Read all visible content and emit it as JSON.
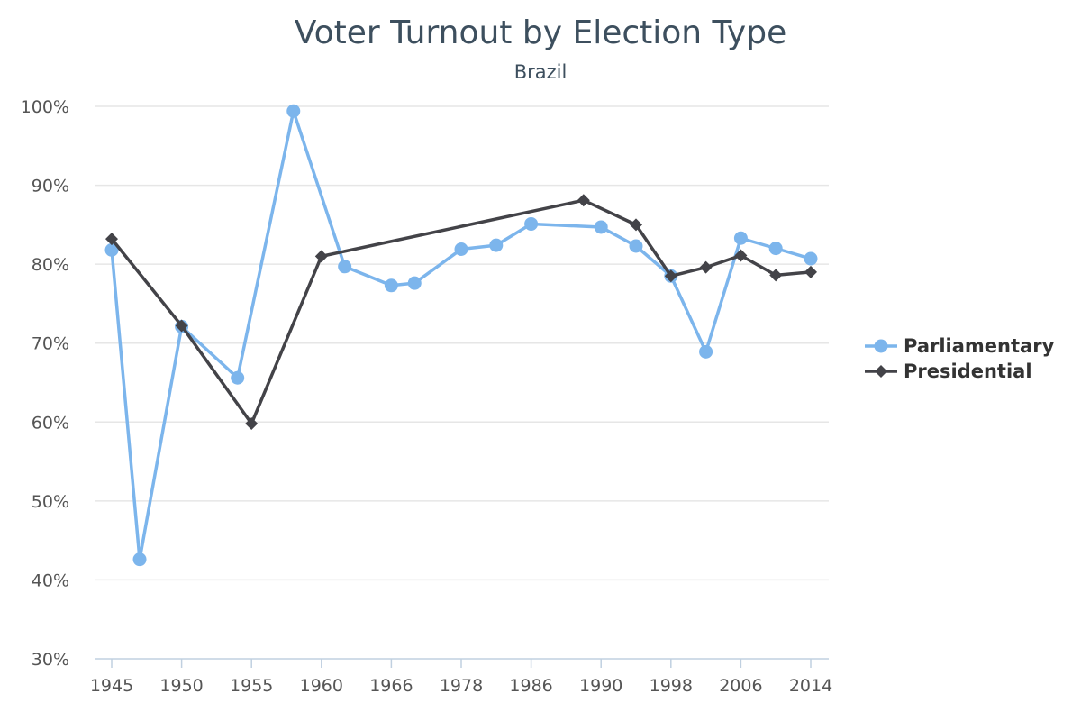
{
  "chart_data": {
    "type": "line",
    "title": "Voter Turnout by Election Type",
    "subtitle": "Brazil",
    "xlabel": "",
    "ylabel": "",
    "ylim": [
      30,
      100
    ],
    "y_ticks": [
      "100%",
      "90%",
      "80%",
      "70%",
      "60%",
      "50%",
      "40%",
      "30%"
    ],
    "x_ticks": [
      {
        "year": 1945,
        "label": "1945"
      },
      {
        "year": 1950,
        "label": "1950"
      },
      {
        "year": 1955,
        "label": "1955"
      },
      {
        "year": 1960,
        "label": "1960"
      },
      {
        "year": 1966,
        "label": "1966"
      },
      {
        "year": 1978,
        "label": "1978"
      },
      {
        "year": 1986,
        "label": "1986"
      },
      {
        "year": 1990,
        "label": "1990"
      },
      {
        "year": 1998,
        "label": "1998"
      },
      {
        "year": 2006,
        "label": "2006"
      },
      {
        "year": 2014,
        "label": "2014"
      }
    ],
    "grid": true,
    "legend_position": "right",
    "series": [
      {
        "name": "Parliamentary",
        "color": "#7cb5ec",
        "marker": "circle",
        "points": [
          {
            "x": 1945,
            "y": 81.8
          },
          {
            "x": 1947,
            "y": 42.6
          },
          {
            "x": 1950,
            "y": 72.1
          },
          {
            "x": 1954,
            "y": 65.6
          },
          {
            "x": 1958,
            "y": 99.4
          },
          {
            "x": 1962,
            "y": 79.7
          },
          {
            "x": 1966,
            "y": 77.3
          },
          {
            "x": 1970,
            "y": 77.6
          },
          {
            "x": 1978,
            "y": 81.9
          },
          {
            "x": 1982,
            "y": 82.4
          },
          {
            "x": 1986,
            "y": 85.1
          },
          {
            "x": 1990,
            "y": 84.7
          },
          {
            "x": 1994,
            "y": 82.3
          },
          {
            "x": 1998,
            "y": 78.5
          },
          {
            "x": 2002,
            "y": 68.9
          },
          {
            "x": 2006,
            "y": 83.3
          },
          {
            "x": 2010,
            "y": 82.0
          },
          {
            "x": 2014,
            "y": 80.7
          }
        ]
      },
      {
        "name": "Presidential",
        "color": "#434348",
        "marker": "diamond",
        "points": [
          {
            "x": 1945,
            "y": 83.2
          },
          {
            "x": 1950,
            "y": 72.2
          },
          {
            "x": 1955,
            "y": 59.8
          },
          {
            "x": 1960,
            "y": 81.0
          },
          {
            "x": 1989,
            "y": 88.1
          },
          {
            "x": 1994,
            "y": 85.0
          },
          {
            "x": 1998,
            "y": 78.5
          },
          {
            "x": 2002,
            "y": 79.6
          },
          {
            "x": 2006,
            "y": 81.1
          },
          {
            "x": 2010,
            "y": 78.6
          },
          {
            "x": 2014,
            "y": 79.0
          }
        ]
      }
    ]
  }
}
